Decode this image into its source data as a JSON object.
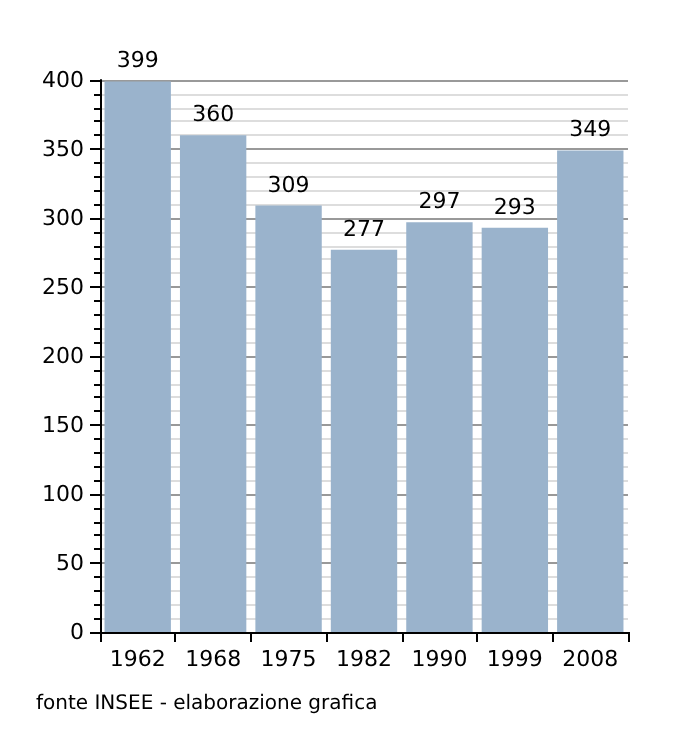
{
  "chart_data": {
    "type": "bar",
    "categories": [
      "1962",
      "1968",
      "1975",
      "1982",
      "1990",
      "1999",
      "2008"
    ],
    "values": [
      399,
      360,
      309,
      277,
      297,
      293,
      349
    ],
    "color": "#9ab3cc",
    "ylim": [
      0,
      400
    ],
    "yticks": [
      0,
      50,
      100,
      150,
      200,
      250,
      300,
      350,
      400
    ],
    "grid": "y",
    "data_labels": true,
    "annotations": [
      "fonte INSEE - elaborazione grafica"
    ]
  }
}
